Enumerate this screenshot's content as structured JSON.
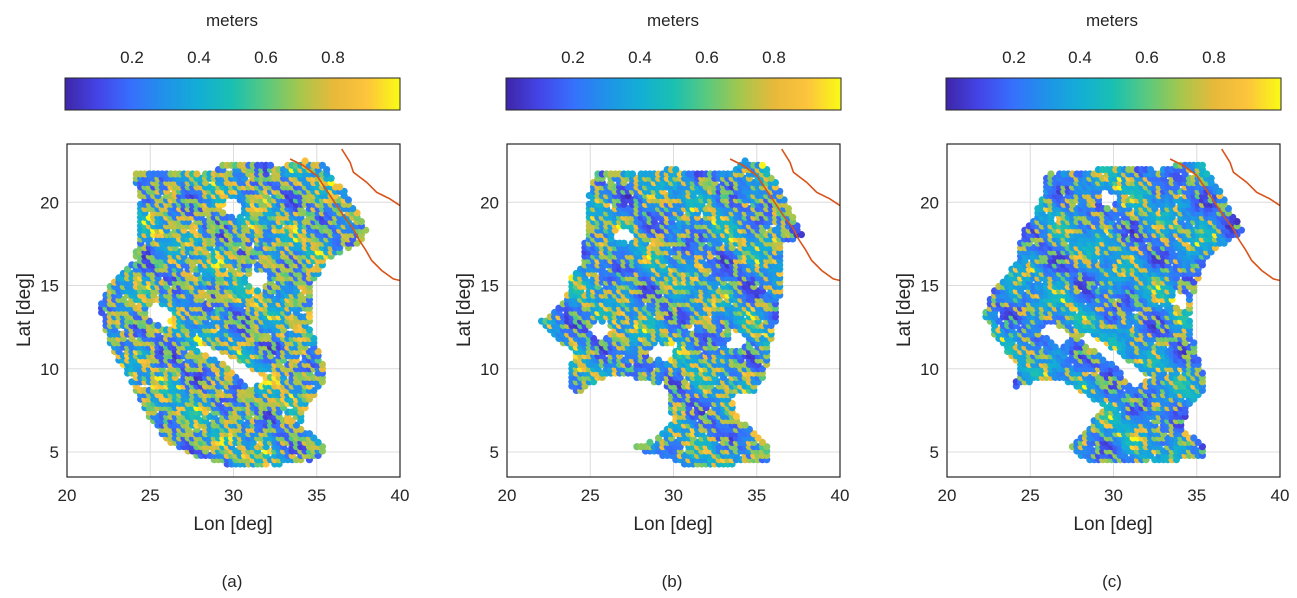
{
  "figure": {
    "panels": [
      "(a)",
      "(b)",
      "(c)"
    ]
  },
  "chart_data": [
    {
      "type": "scatter",
      "panel_label": "(a)",
      "xlabel": "Lon [deg]",
      "ylabel": "Lat [deg]",
      "xlim": [
        20,
        40
      ],
      "ylim": [
        3.5,
        23.5
      ],
      "xticks": [
        20,
        25,
        30,
        35,
        40
      ],
      "yticks": [
        5,
        10,
        15,
        20
      ],
      "grid": true,
      "colorbar": {
        "label": "meters",
        "ticks": [
          0.2,
          0.4,
          0.6,
          0.8
        ],
        "range": [
          0,
          1
        ],
        "colormap": "parula",
        "placement": "top"
      },
      "coastline_color": "#d95319",
      "marker_pattern_seed": 11,
      "fraction_low_values": 0.5,
      "region": [
        [
          24,
          21.8
        ],
        [
          29,
          21.8
        ],
        [
          29.2,
          22.3
        ],
        [
          33,
          22.2
        ],
        [
          34.2,
          22.5
        ],
        [
          35.3,
          22.4
        ],
        [
          36.8,
          20.5
        ],
        [
          38,
          18.3
        ],
        [
          37.6,
          17.6
        ],
        [
          35.6,
          16.5
        ],
        [
          34.8,
          15.2
        ],
        [
          34.8,
          12
        ],
        [
          35.6,
          9.5
        ],
        [
          34.5,
          8
        ],
        [
          34,
          6.6
        ],
        [
          35.6,
          5.2
        ],
        [
          35.6,
          4.7
        ],
        [
          33.5,
          4.3
        ],
        [
          29.8,
          4.2
        ],
        [
          27.8,
          4.8
        ],
        [
          26,
          5.7
        ],
        [
          25,
          7
        ],
        [
          24,
          9
        ],
        [
          22.8,
          11
        ],
        [
          22.2,
          12.6
        ],
        [
          22,
          13.8
        ],
        [
          22.7,
          15.3
        ],
        [
          24,
          16.4
        ],
        [
          24.3,
          18
        ],
        [
          24.4,
          20
        ]
      ],
      "holes": [
        [
          [
            24.7,
            13.3
          ],
          [
            25.9,
            12.2
          ],
          [
            26.4,
            13.4
          ],
          [
            25.3,
            14.2
          ]
        ],
        [
          [
            27.5,
            11.2
          ],
          [
            29.3,
            10.4
          ],
          [
            31.1,
            8.8
          ],
          [
            32,
            9.4
          ],
          [
            30.2,
            10.6
          ],
          [
            28.2,
            11.5
          ]
        ],
        [
          [
            30.8,
            15.2
          ],
          [
            31.7,
            14.5
          ],
          [
            32.2,
            15.6
          ],
          [
            31.2,
            16.1
          ]
        ],
        [
          [
            29.3,
            19.5
          ],
          [
            30.3,
            19
          ],
          [
            30.6,
            20
          ],
          [
            29.6,
            20.4
          ]
        ]
      ]
    },
    {
      "type": "scatter",
      "panel_label": "(b)",
      "xlabel": "Lon [deg]",
      "ylabel": "Lat [deg]",
      "xlim": [
        20,
        40
      ],
      "ylim": [
        3.5,
        23.5
      ],
      "xticks": [
        20,
        25,
        30,
        35,
        40
      ],
      "yticks": [
        5,
        10,
        15,
        20
      ],
      "grid": true,
      "colorbar": {
        "label": "meters",
        "ticks": [
          0.2,
          0.4,
          0.6,
          0.8
        ],
        "range": [
          0,
          1
        ],
        "colormap": "parula",
        "placement": "top"
      },
      "coastline_color": "#d95319",
      "marker_pattern_seed": 23,
      "fraction_low_values": 0.62,
      "region": [
        [
          25.3,
          21.8
        ],
        [
          29.5,
          21.8
        ],
        [
          29.6,
          22
        ],
        [
          33.5,
          21.8
        ],
        [
          34.2,
          22.5
        ],
        [
          35.5,
          22.3
        ],
        [
          36.5,
          20.5
        ],
        [
          37.8,
          18
        ],
        [
          36.6,
          17.6
        ],
        [
          36.5,
          15
        ],
        [
          36,
          12
        ],
        [
          35.5,
          9.5
        ],
        [
          34.8,
          8.6
        ],
        [
          33.3,
          8.4
        ],
        [
          34,
          6.9
        ],
        [
          35.8,
          5.3
        ],
        [
          35.6,
          4.5
        ],
        [
          33,
          4.2
        ],
        [
          31,
          4.1
        ],
        [
          30,
          4.6
        ],
        [
          27.5,
          5.2
        ],
        [
          28.8,
          5.8
        ],
        [
          29.9,
          6.8
        ],
        [
          29.8,
          8.8
        ],
        [
          28.2,
          9.4
        ],
        [
          26.3,
          9.6
        ],
        [
          25.2,
          9.2
        ],
        [
          24.2,
          8.5
        ],
        [
          23.7,
          9.2
        ],
        [
          24,
          11
        ],
        [
          22.5,
          12.3
        ],
        [
          22,
          12.8
        ],
        [
          23.5,
          14.2
        ],
        [
          23.9,
          15.5
        ],
        [
          24.6,
          16.3
        ],
        [
          24.7,
          18
        ],
        [
          25,
          21
        ]
      ],
      "holes": [
        [
          [
            24.8,
            12.2
          ],
          [
            25.7,
            11.6
          ],
          [
            26.3,
            12.4
          ],
          [
            25.4,
            12.9
          ]
        ],
        [
          [
            28.3,
            10.8
          ],
          [
            29.6,
            10.4
          ],
          [
            30.3,
            11.3
          ],
          [
            29,
            11.6
          ]
        ],
        [
          [
            33.2,
            11.4
          ],
          [
            34.2,
            11
          ],
          [
            34.4,
            12
          ],
          [
            33.5,
            12.4
          ]
        ],
        [
          [
            26.4,
            17.8
          ],
          [
            27.4,
            17.4
          ],
          [
            27.7,
            18.2
          ],
          [
            26.7,
            18.6
          ]
        ]
      ]
    },
    {
      "type": "scatter",
      "panel_label": "(c)",
      "xlabel": "Lon [deg]",
      "ylabel": "Lat [deg]",
      "xlim": [
        20,
        40
      ],
      "ylim": [
        3.5,
        23.5
      ],
      "xticks": [
        20,
        25,
        30,
        35,
        40
      ],
      "yticks": [
        5,
        10,
        15,
        20
      ],
      "grid": true,
      "colorbar": {
        "label": "meters",
        "ticks": [
          0.2,
          0.4,
          0.6,
          0.8
        ],
        "range": [
          0,
          1
        ],
        "colormap": "parula",
        "placement": "top"
      },
      "coastline_color": "#d95319",
      "marker_pattern_seed": 41,
      "fraction_low_values": 0.72,
      "region": [
        [
          26,
          21.7
        ],
        [
          29,
          21.8
        ],
        [
          29.2,
          22.2
        ],
        [
          33,
          22
        ],
        [
          34.2,
          22.4
        ],
        [
          35.3,
          22.3
        ],
        [
          36.5,
          20.5
        ],
        [
          37.8,
          18.3
        ],
        [
          36.6,
          17.5
        ],
        [
          35.5,
          16.5
        ],
        [
          34.8,
          14.6
        ],
        [
          34.7,
          12
        ],
        [
          35.6,
          9
        ],
        [
          34.5,
          7.6
        ],
        [
          34,
          6.4
        ],
        [
          35.4,
          5.5
        ],
        [
          35.5,
          4.8
        ],
        [
          33.2,
          4.4
        ],
        [
          30.5,
          4.5
        ],
        [
          29.5,
          4.4
        ],
        [
          28,
          4.6
        ],
        [
          27.5,
          5.3
        ],
        [
          28.4,
          6.2
        ],
        [
          29.4,
          7.8
        ],
        [
          27.3,
          9.2
        ],
        [
          25.5,
          9.4
        ],
        [
          24,
          8.8
        ],
        [
          24.4,
          10.2
        ],
        [
          23.2,
          11.5
        ],
        [
          22.2,
          13
        ],
        [
          22.5,
          14.2
        ],
        [
          23.3,
          15.3
        ],
        [
          24.2,
          16.4
        ],
        [
          24.5,
          18
        ],
        [
          25.5,
          19.8
        ]
      ],
      "holes": [
        [
          [
            25.5,
            12.2
          ],
          [
            26.8,
            11.2
          ],
          [
            27.6,
            12
          ],
          [
            26.3,
            12.9
          ]
        ],
        [
          [
            27.8,
            11.8
          ],
          [
            29.6,
            10.6
          ],
          [
            31.3,
            8.8
          ],
          [
            32.2,
            9.4
          ],
          [
            30.6,
            10.8
          ],
          [
            28.5,
            12.2
          ]
        ],
        [
          [
            33.5,
            13.8
          ],
          [
            34.3,
            13.4
          ],
          [
            34.6,
            14.4
          ],
          [
            33.7,
            14.8
          ]
        ],
        [
          [
            29.1,
            20
          ],
          [
            30,
            19.5
          ],
          [
            30.3,
            20.4
          ],
          [
            29.4,
            20.8
          ]
        ]
      ]
    }
  ]
}
